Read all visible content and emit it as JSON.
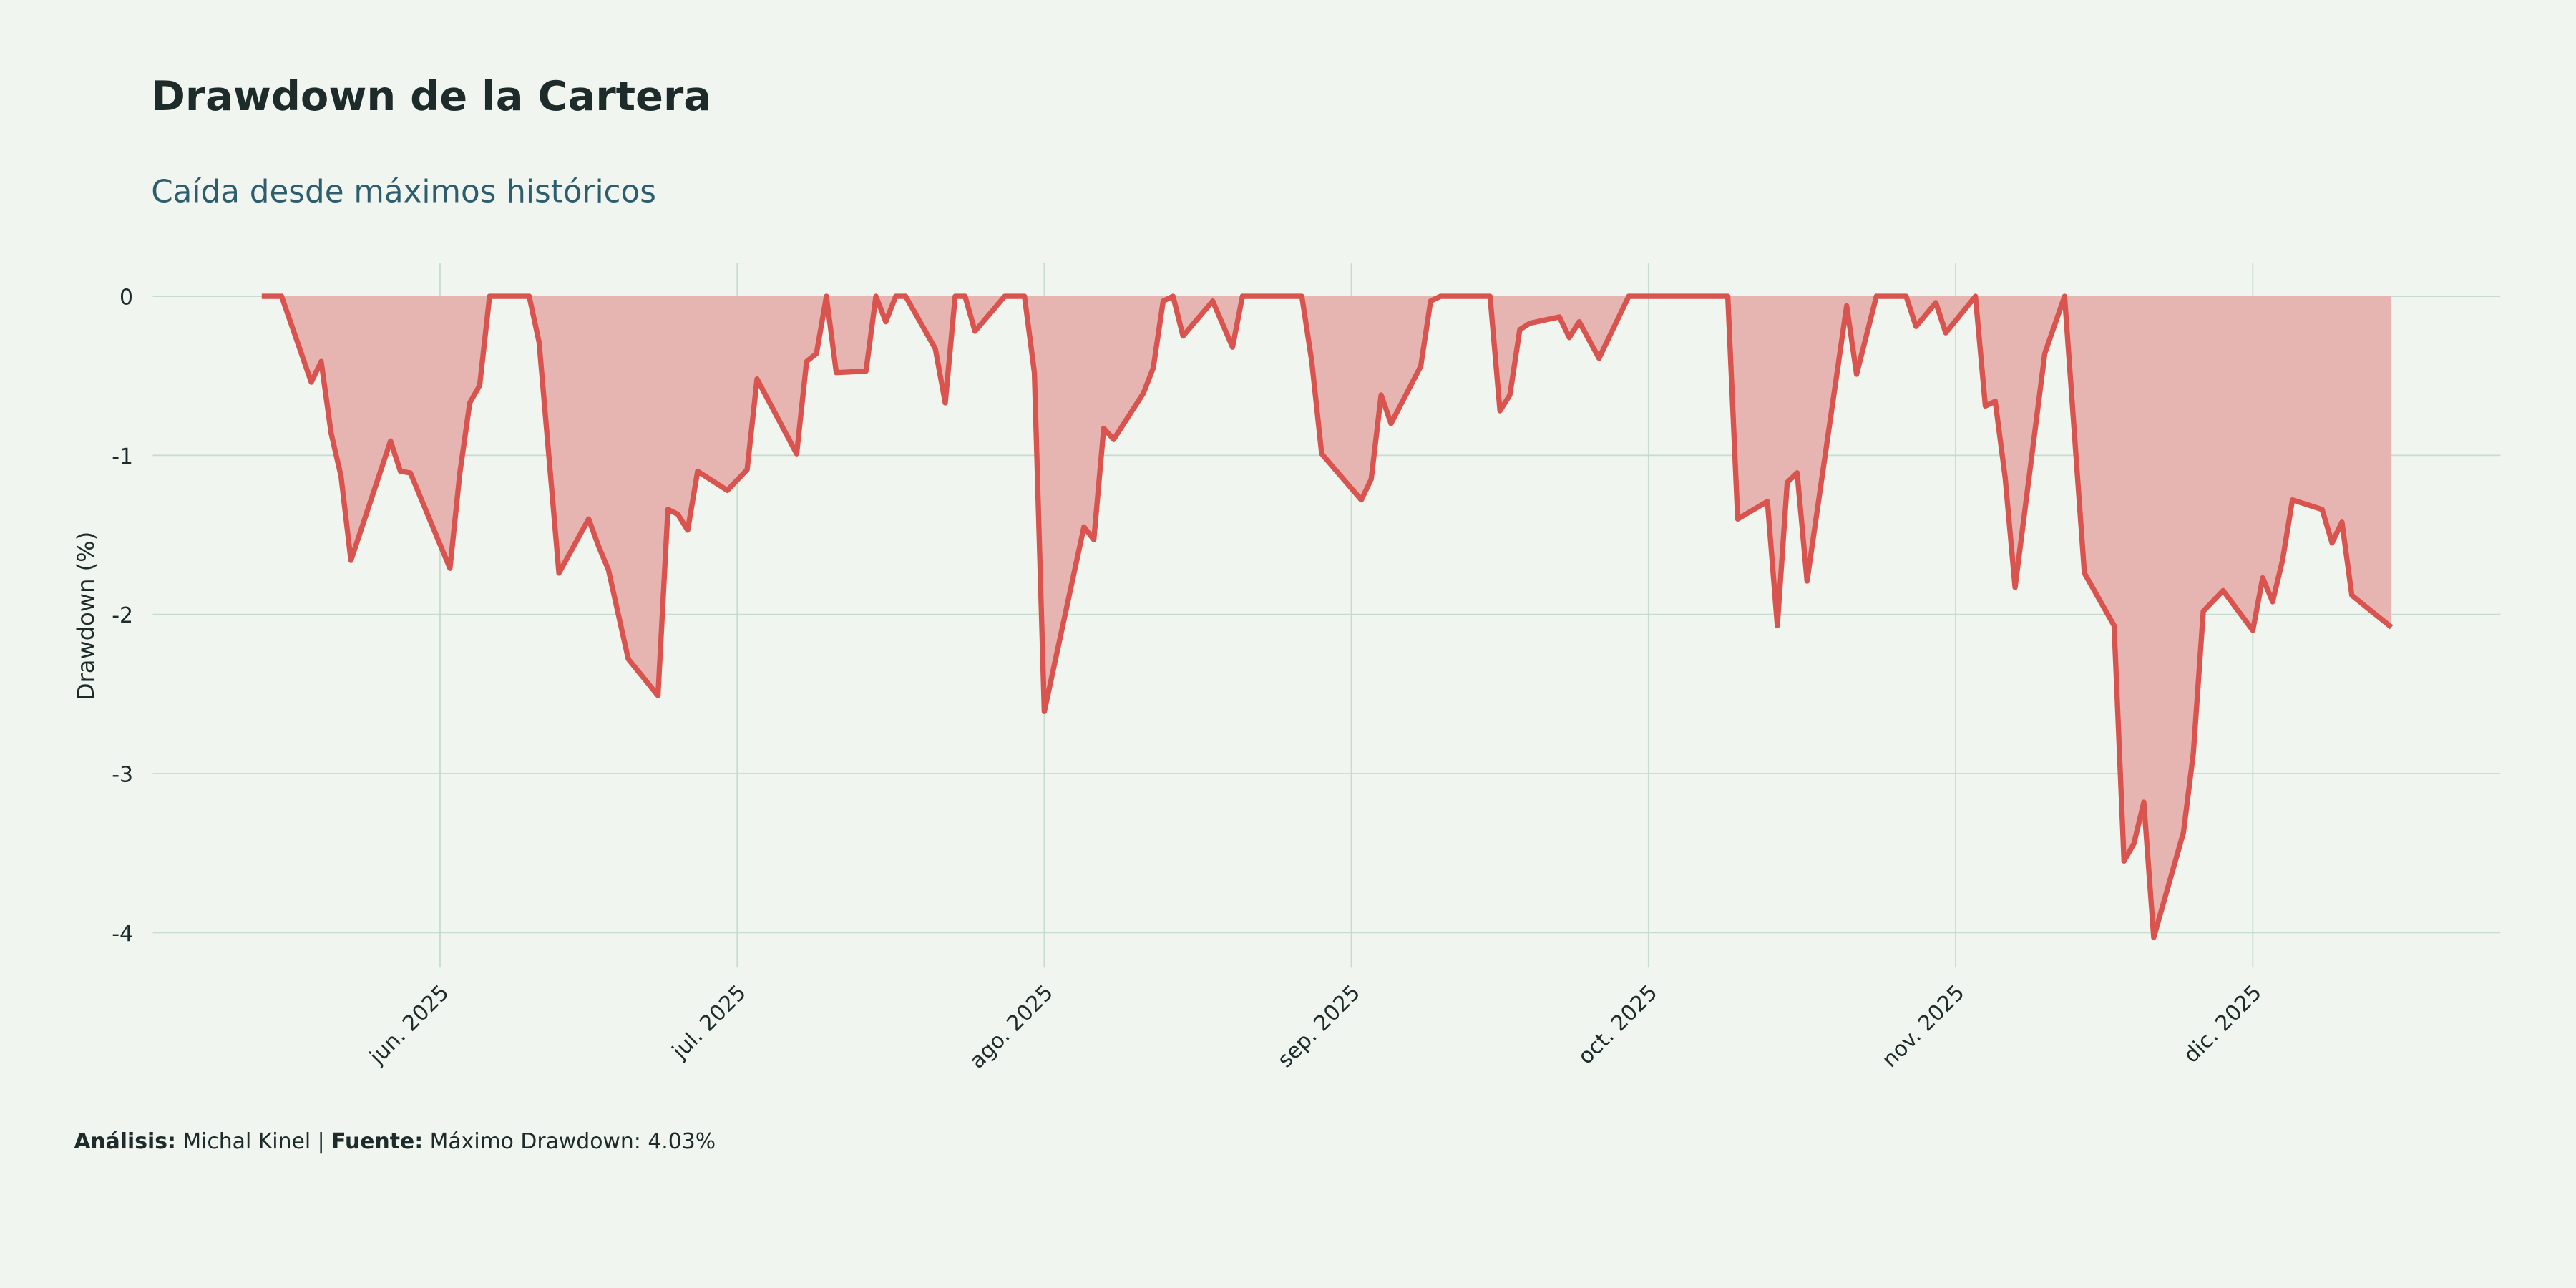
{
  "chart_data": {
    "type": "area",
    "title": "Drawdown de la Cartera",
    "subtitle": "Caída desde máximos históricos",
    "ylabel": "Drawdown (%)",
    "caption": {
      "analysis_label": "Análisis:",
      "analysis": "Michal Kinel",
      "separator": "|",
      "source_label": "Fuente:",
      "source": "Máximo Drawdown: 4.03%"
    },
    "x": [
      134,
      136,
      139,
      140,
      141,
      142,
      143,
      147,
      148,
      149,
      153,
      154,
      155,
      156,
      157,
      161,
      162,
      164,
      167,
      168,
      169,
      171,
      174,
      175,
      176,
      177,
      178,
      181,
      183,
      184,
      188,
      189,
      190,
      191,
      192,
      195,
      196,
      197,
      198,
      199,
      202,
      203,
      204,
      205,
      206,
      209,
      211,
      212,
      213,
      217,
      218,
      219,
      220,
      223,
      224,
      225,
      226,
      227,
      230,
      232,
      233,
      239,
      240,
      241,
      245,
      246,
      247,
      248,
      251,
      252,
      253,
      258,
      259,
      260,
      261,
      262,
      265,
      266,
      267,
      269,
      272,
      282,
      283,
      286,
      287,
      288,
      289,
      290,
      294,
      295,
      297,
      300,
      301,
      303,
      304,
      307,
      308,
      309,
      310,
      311,
      314,
      316,
      318,
      321,
      322,
      323,
      324,
      325,
      328,
      329,
      330,
      332,
      335,
      336,
      337,
      338,
      339,
      342,
      343,
      344,
      345,
      349
    ],
    "series": [
      {
        "name": "Drawdown",
        "color": "#d9534f",
        "fill": "#e7b5b1",
        "values": [
          0,
          0,
          -0.54,
          -0.41,
          -0.86,
          -1.13,
          -1.66,
          -0.91,
          -1.1,
          -1.11,
          -1.71,
          -1.11,
          -0.67,
          -0.56,
          0,
          0,
          -0.29,
          -1.74,
          -1.4,
          -1.57,
          -1.72,
          -2.28,
          -2.51,
          -1.34,
          -1.37,
          -1.47,
          -1.1,
          -1.22,
          -1.09,
          -0.52,
          -0.99,
          -0.41,
          -0.36,
          0,
          -0.48,
          -0.47,
          0,
          -0.16,
          0,
          0,
          -0.33,
          -0.67,
          0,
          0,
          -0.22,
          0,
          0,
          -0.48,
          -2.61,
          -1.45,
          -1.53,
          -0.83,
          -0.9,
          -0.61,
          -0.45,
          -0.03,
          0,
          -0.25,
          -0.03,
          -0.32,
          0,
          0,
          -0.41,
          -0.99,
          -1.28,
          -1.15,
          -0.62,
          -0.8,
          -0.44,
          -0.03,
          0,
          0,
          -0.72,
          -0.62,
          -0.21,
          -0.17,
          -0.13,
          -0.26,
          -0.16,
          -0.39,
          0,
          0,
          -1.4,
          -1.29,
          -2.07,
          -1.17,
          -1.11,
          -1.79,
          -0.06,
          -0.49,
          0,
          0,
          -0.19,
          -0.04,
          -0.23,
          0,
          -0.69,
          -0.66,
          -1.14,
          -1.83,
          -0.36,
          0,
          -1.74,
          -2.07,
          -3.55,
          -3.44,
          -3.18,
          -4.03,
          -3.37,
          -2.87,
          -1.98,
          -1.85,
          -2.1,
          -1.77,
          -1.92,
          -1.66,
          -1.28,
          -1.34,
          -1.55,
          -1.42,
          -1.88,
          -2.08
        ]
      }
    ],
    "xlim": [
      123,
      360
    ],
    "xticks": [
      {
        "value": 152,
        "label": "jun. 2025"
      },
      {
        "value": 182,
        "label": "jul. 2025"
      },
      {
        "value": 213,
        "label": "ago. 2025"
      },
      {
        "value": 244,
        "label": "sep. 2025"
      },
      {
        "value": 274,
        "label": "oct. 2025"
      },
      {
        "value": 305,
        "label": "nov. 2025"
      },
      {
        "value": 335,
        "label": "dic. 2025"
      }
    ],
    "ylim": [
      -4.22,
      0.21
    ],
    "yticks": [
      0,
      -1,
      -2,
      -3,
      -4
    ],
    "grid": true
  }
}
